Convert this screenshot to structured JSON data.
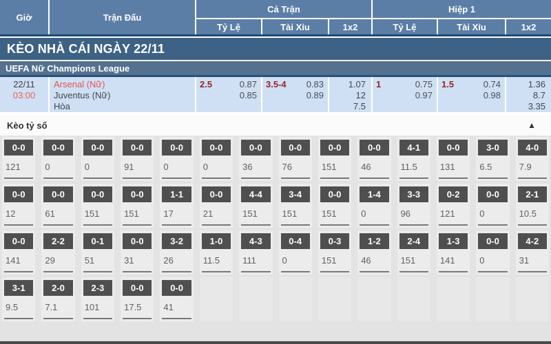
{
  "header": {
    "col_time": "Giờ",
    "col_match": "Trận Đấu",
    "group_full": "Cả Trận",
    "group_half": "Hiệp 1",
    "sub_handicap": "Tỷ Lệ",
    "sub_overunder": "Tài Xỉu",
    "sub_1x2": "1x2"
  },
  "day_section_title": "KÈO NHÀ CÁI NGÀY 22/11",
  "league_title": "UEFA Nữ Champions League",
  "match": {
    "date": "22/11",
    "time": "03:00",
    "home_team": "Arsenal (Nữ)",
    "away_team": "Juventus (Nữ)",
    "draw_label": "Hòa",
    "full": {
      "handicap_line": "2.5",
      "handicap_home": "0.87",
      "handicap_away": "0.85",
      "ou_line": "3.5-4",
      "ou_over": "0.83",
      "ou_under": "0.89",
      "odds_1": "1.07",
      "odds_x": "12",
      "odds_2": "7.5"
    },
    "half": {
      "handicap_line": "1",
      "handicap_home": "0.75",
      "handicap_away": "0.97",
      "ou_line": "1.5",
      "ou_over": "0.74",
      "ou_under": "0.98",
      "odds_1": "1.36",
      "odds_x": "8.7",
      "odds_2": "3.35"
    }
  },
  "score_section": {
    "title": "Kèo tỷ số",
    "collapse_icon": "▲",
    "rows": [
      [
        {
          "s": "0-0",
          "o": "121"
        },
        {
          "s": "0-0",
          "o": "0"
        },
        {
          "s": "0-0",
          "o": "0"
        },
        {
          "s": "0-0",
          "o": "91"
        },
        {
          "s": "0-0",
          "o": "0"
        },
        {
          "s": "0-0",
          "o": "0"
        },
        {
          "s": "0-0",
          "o": "36"
        },
        {
          "s": "0-0",
          "o": "76"
        },
        {
          "s": "0-0",
          "o": "151"
        },
        {
          "s": "0-0",
          "o": "46"
        },
        {
          "s": "4-1",
          "o": "11.5"
        },
        {
          "s": "0-0",
          "o": "131"
        },
        {
          "s": "3-0",
          "o": "6.5"
        },
        {
          "s": "4-0",
          "o": "7.9"
        }
      ],
      [
        {
          "s": "0-0",
          "o": "12"
        },
        {
          "s": "0-0",
          "o": "61"
        },
        {
          "s": "0-0",
          "o": "151"
        },
        {
          "s": "0-0",
          "o": "151"
        },
        {
          "s": "1-1",
          "o": "17"
        },
        {
          "s": "0-0",
          "o": "21"
        },
        {
          "s": "4-4",
          "o": "151"
        },
        {
          "s": "3-4",
          "o": "151"
        },
        {
          "s": "0-0",
          "o": "151"
        },
        {
          "s": "1-4",
          "o": "0"
        },
        {
          "s": "3-3",
          "o": "96"
        },
        {
          "s": "0-2",
          "o": "121"
        },
        {
          "s": "0-0",
          "o": "0"
        },
        {
          "s": "2-1",
          "o": "10.5"
        }
      ],
      [
        {
          "s": "0-0",
          "o": "141"
        },
        {
          "s": "2-2",
          "o": "29"
        },
        {
          "s": "0-1",
          "o": "51"
        },
        {
          "s": "0-0",
          "o": "31"
        },
        {
          "s": "3-2",
          "o": "26"
        },
        {
          "s": "1-0",
          "o": "11.5"
        },
        {
          "s": "4-3",
          "o": "111"
        },
        {
          "s": "0-4",
          "o": "0"
        },
        {
          "s": "0-3",
          "o": "151"
        },
        {
          "s": "1-2",
          "o": "46"
        },
        {
          "s": "2-4",
          "o": "151"
        },
        {
          "s": "1-3",
          "o": "141"
        },
        {
          "s": "0-0",
          "o": "0"
        },
        {
          "s": "4-2",
          "o": "31"
        }
      ],
      [
        {
          "s": "3-1",
          "o": "9.5"
        },
        {
          "s": "2-0",
          "o": "7.1"
        },
        {
          "s": "2-3",
          "o": "101"
        },
        {
          "s": "0-0",
          "o": "17.5"
        },
        {
          "s": "0-0",
          "o": "41"
        },
        null,
        null,
        null,
        null,
        null,
        null,
        null,
        null,
        null
      ]
    ]
  },
  "colors": {
    "header_blue": "#5b7ea7",
    "day_bar_blue": "#3e6285",
    "league_bar_blue": "#54718f",
    "match_row_bg": "#cfe0f4",
    "handicap_maroon": "#9b2423",
    "team_red": "#e4544d",
    "score_box_gray": "#4f4f4f",
    "section_bg": "#e3e3e3"
  }
}
